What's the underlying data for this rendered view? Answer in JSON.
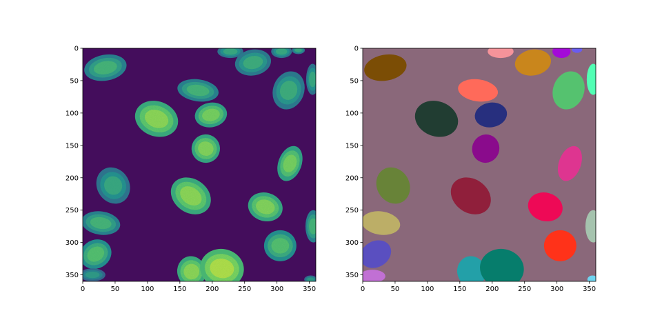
{
  "chart_data": [
    {
      "type": "heatmap",
      "colormap": "viridis",
      "background_color": "#440d5c",
      "xlim": [
        0,
        360
      ],
      "ylim": [
        360,
        0
      ],
      "xticks": [
        0,
        50,
        100,
        150,
        200,
        250,
        300,
        350
      ],
      "yticks": [
        0,
        50,
        100,
        150,
        200,
        250,
        300,
        350
      ],
      "nuclei": [
        {
          "cx": 35,
          "cy": 30,
          "rx": 33,
          "ry": 20,
          "rot": -10,
          "intensity": 0.55
        },
        {
          "cx": 228,
          "cy": 5,
          "rx": 20,
          "ry": 10,
          "rot": 0,
          "intensity": 0.5
        },
        {
          "cx": 263,
          "cy": 22,
          "rx": 28,
          "ry": 20,
          "rot": -10,
          "intensity": 0.52
        },
        {
          "cx": 307,
          "cy": 5,
          "rx": 16,
          "ry": 10,
          "rot": 0,
          "intensity": 0.5
        },
        {
          "cx": 333,
          "cy": 3,
          "rx": 10,
          "ry": 6,
          "rot": 0,
          "intensity": 0.5
        },
        {
          "cx": 355,
          "cy": 48,
          "rx": 10,
          "ry": 24,
          "rot": 0,
          "intensity": 0.5
        },
        {
          "cx": 178,
          "cy": 65,
          "rx": 32,
          "ry": 17,
          "rot": 8,
          "intensity": 0.55
        },
        {
          "cx": 318,
          "cy": 65,
          "rx": 24,
          "ry": 30,
          "rot": 20,
          "intensity": 0.52
        },
        {
          "cx": 114,
          "cy": 109,
          "rx": 34,
          "ry": 27,
          "rot": 20,
          "intensity": 0.72
        },
        {
          "cx": 198,
          "cy": 103,
          "rx": 25,
          "ry": 19,
          "rot": -10,
          "intensity": 0.68
        },
        {
          "cx": 190,
          "cy": 155,
          "rx": 22,
          "ry": 22,
          "rot": 20,
          "intensity": 0.7
        },
        {
          "cx": 320,
          "cy": 178,
          "rx": 18,
          "ry": 28,
          "rot": 20,
          "intensity": 0.68
        },
        {
          "cx": 47,
          "cy": 212,
          "rx": 25,
          "ry": 29,
          "rot": -30,
          "intensity": 0.5
        },
        {
          "cx": 167,
          "cy": 228,
          "rx": 33,
          "ry": 26,
          "rot": 35,
          "intensity": 0.72
        },
        {
          "cx": 282,
          "cy": 245,
          "rx": 27,
          "ry": 22,
          "rot": 15,
          "intensity": 0.7
        },
        {
          "cx": 356,
          "cy": 275,
          "rx": 12,
          "ry": 25,
          "rot": 0,
          "intensity": 0.55
        },
        {
          "cx": 28,
          "cy": 270,
          "rx": 30,
          "ry": 18,
          "rot": 8,
          "intensity": 0.55
        },
        {
          "cx": 305,
          "cy": 305,
          "rx": 25,
          "ry": 24,
          "rot": 0,
          "intensity": 0.6
        },
        {
          "cx": 20,
          "cy": 318,
          "rx": 25,
          "ry": 22,
          "rot": -30,
          "intensity": 0.6
        },
        {
          "cx": 168,
          "cy": 345,
          "rx": 22,
          "ry": 24,
          "rot": -15,
          "intensity": 0.72
        },
        {
          "cx": 215,
          "cy": 340,
          "rx": 34,
          "ry": 30,
          "rot": 10,
          "intensity": 0.78
        },
        {
          "cx": 15,
          "cy": 350,
          "rx": 20,
          "ry": 10,
          "rot": 0,
          "intensity": 0.45
        },
        {
          "cx": 352,
          "cy": 357,
          "rx": 10,
          "ry": 6,
          "rot": 0,
          "intensity": 0.45
        }
      ]
    },
    {
      "type": "heatmap",
      "colormap": "label-overlay",
      "background_color": "#8a687a",
      "xlim": [
        0,
        360
      ],
      "ylim": [
        360,
        0
      ],
      "xticks": [
        0,
        50,
        100,
        150,
        200,
        250,
        300,
        350
      ],
      "yticks": [
        0,
        50,
        100,
        150,
        200,
        250,
        300,
        350
      ],
      "labels": [
        {
          "cx": 35,
          "cy": 30,
          "rx": 33,
          "ry": 20,
          "rot": -10,
          "color": "#7b4d05"
        },
        {
          "cx": 213,
          "cy": 5,
          "rx": 20,
          "ry": 10,
          "rot": 0,
          "color": "#f5939a"
        },
        {
          "cx": 263,
          "cy": 22,
          "rx": 28,
          "ry": 20,
          "rot": -10,
          "color": "#c9861c"
        },
        {
          "cx": 307,
          "cy": 5,
          "rx": 14,
          "ry": 10,
          "rot": 0,
          "color": "#a30ad8"
        },
        {
          "cx": 331,
          "cy": 2,
          "rx": 8,
          "ry": 5,
          "rot": 0,
          "color": "#6a5cf0"
        },
        {
          "cx": 356,
          "cy": 48,
          "rx": 10,
          "ry": 24,
          "rot": 0,
          "color": "#52ffb4"
        },
        {
          "cx": 178,
          "cy": 65,
          "rx": 31,
          "ry": 17,
          "rot": 8,
          "color": "#ff6a5a"
        },
        {
          "cx": 318,
          "cy": 65,
          "rx": 24,
          "ry": 30,
          "rot": 20,
          "color": "#55c26f"
        },
        {
          "cx": 114,
          "cy": 109,
          "rx": 34,
          "ry": 27,
          "rot": 20,
          "color": "#213d32"
        },
        {
          "cx": 198,
          "cy": 103,
          "rx": 25,
          "ry": 19,
          "rot": -10,
          "color": "#272f7e"
        },
        {
          "cx": 190,
          "cy": 155,
          "rx": 21,
          "ry": 22,
          "rot": 20,
          "color": "#8a0b8c"
        },
        {
          "cx": 320,
          "cy": 178,
          "rx": 17,
          "ry": 28,
          "rot": 20,
          "color": "#de3590"
        },
        {
          "cx": 47,
          "cy": 212,
          "rx": 25,
          "ry": 29,
          "rot": -30,
          "color": "#688338"
        },
        {
          "cx": 167,
          "cy": 228,
          "rx": 33,
          "ry": 26,
          "rot": 35,
          "color": "#901f3b"
        },
        {
          "cx": 282,
          "cy": 245,
          "rx": 27,
          "ry": 22,
          "rot": 15,
          "color": "#ee0956"
        },
        {
          "cx": 356,
          "cy": 275,
          "rx": 12,
          "ry": 25,
          "rot": 0,
          "color": "#a5c3ae"
        },
        {
          "cx": 28,
          "cy": 270,
          "rx": 30,
          "ry": 18,
          "rot": 8,
          "color": "#bcae67"
        },
        {
          "cx": 305,
          "cy": 305,
          "rx": 25,
          "ry": 24,
          "rot": 0,
          "color": "#ff3219"
        },
        {
          "cx": 20,
          "cy": 318,
          "rx": 25,
          "ry": 20,
          "rot": -30,
          "color": "#5a4fc0"
        },
        {
          "cx": 168,
          "cy": 345,
          "rx": 22,
          "ry": 24,
          "rot": -15,
          "color": "#23a0a8"
        },
        {
          "cx": 215,
          "cy": 340,
          "rx": 34,
          "ry": 30,
          "rot": 10,
          "color": "#067d6c"
        },
        {
          "cx": 15,
          "cy": 352,
          "rx": 20,
          "ry": 10,
          "rot": 0,
          "color": "#c170d4"
        },
        {
          "cx": 355,
          "cy": 357,
          "rx": 8,
          "ry": 6,
          "rot": 0,
          "color": "#6fd4f0"
        }
      ]
    }
  ]
}
